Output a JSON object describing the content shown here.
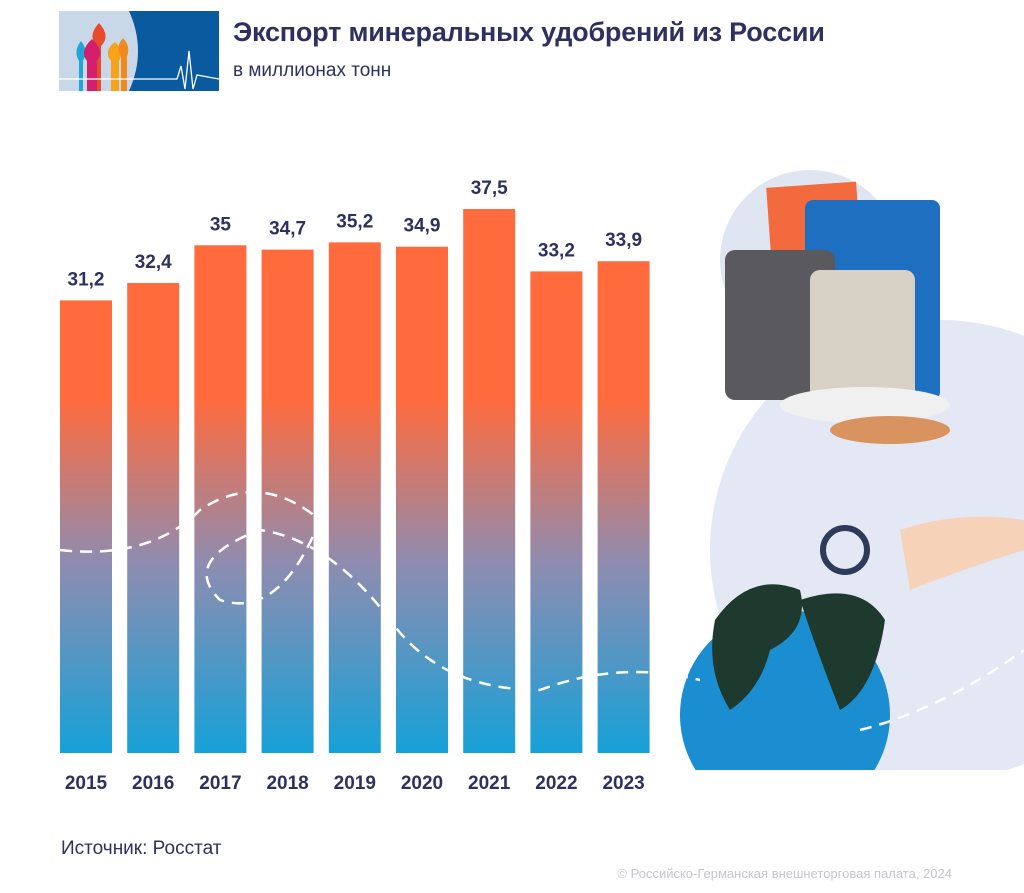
{
  "header": {
    "title": "Экспорт минеральных удобрений из России",
    "subtitle": "в миллионах тонн"
  },
  "footer": {
    "source": "Источник: Росстат",
    "copyright": "© Российско-Германская внешнеторговая палата, 2024"
  },
  "colors": {
    "bar_top": "#ff6b3d",
    "bar_bottom": "#16a1d8",
    "text": "#2e3160"
  },
  "chart_data": {
    "type": "bar",
    "categories": [
      "2015",
      "2016",
      "2017",
      "2018",
      "2019",
      "2020",
      "2021",
      "2022",
      "2023"
    ],
    "values": [
      31.2,
      32.4,
      35,
      34.7,
      35.2,
      34.9,
      37.5,
      33.2,
      33.9
    ],
    "data_labels": [
      "31,2",
      "32,4",
      "35",
      "34,7",
      "35,2",
      "34,9",
      "37,5",
      "33,2",
      "33,9"
    ],
    "title": "Экспорт минеральных удобрений из России",
    "subtitle": "в миллионах тонн",
    "xlabel": "",
    "ylabel": "",
    "ylim": [
      0,
      37.5
    ],
    "grid": false,
    "legend": "none"
  }
}
